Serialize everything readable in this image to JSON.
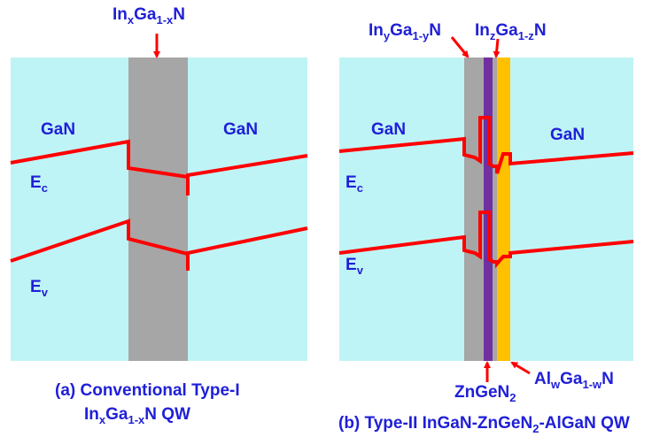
{
  "colors": {
    "gan": "#bff4f6",
    "ingan": "#a6a6a6",
    "zngen2": "#7030a0",
    "algan": "#ffc000",
    "band": "#ff0000",
    "text": "#1f1fd8"
  },
  "panel_a": {
    "top_label": {
      "base1": "In",
      "sub1": "x",
      "base2": "Ga",
      "sub2": "1-x",
      "base3": "N"
    },
    "left_region": "GaN",
    "right_region": "GaN",
    "ec": {
      "base": "E",
      "sub": "c"
    },
    "ev": {
      "base": "E",
      "sub": "v"
    },
    "caption_line1": "(a)  Conventional Type-I",
    "caption_line2": {
      "base1": "In",
      "sub1": "x",
      "base2": "Ga",
      "sub2": "1-x",
      "rest": "N QW"
    }
  },
  "panel_b": {
    "label_ingan": {
      "base1": "In",
      "sub1": "y",
      "base2": "Ga",
      "sub2": "1-y",
      "base3": "N"
    },
    "label_ingan2": {
      "base1": "In",
      "sub1": "z",
      "base2": "Ga",
      "sub2": "1-z",
      "base3": "N"
    },
    "left_region": "GaN",
    "right_region": "GaN",
    "ec": {
      "base": "E",
      "sub": "c"
    },
    "ev": {
      "base": "E",
      "sub": "v"
    },
    "label_zngen2": {
      "base": "ZnGeN",
      "sub": "2"
    },
    "label_algan": {
      "base1": "Al",
      "sub1": "w",
      "base2": "Ga",
      "sub2": "1-w",
      "base3": "N"
    },
    "caption": {
      "part1": "(b) Type-II InGaN-ZnGeN",
      "sub": "2",
      "part2": "-AlGaN QW"
    }
  }
}
